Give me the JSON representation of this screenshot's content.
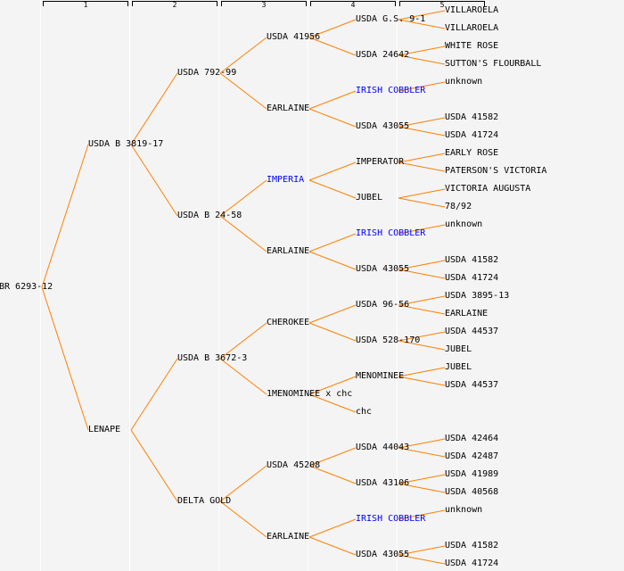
{
  "generations": [
    "1",
    "2",
    "3",
    "4",
    "5"
  ],
  "colors": {
    "line": "#ff8000",
    "link": "#0000ff",
    "text": "#000000",
    "background": "#f4f4f4"
  },
  "tree": {
    "n": "BR 6293-12",
    "c": [
      {
        "n": "USDA B 3819-17",
        "c": [
          {
            "n": "USDA 792-99",
            "c": [
              {
                "n": "USDA 41956",
                "c": [
                  {
                    "n": "USDA G.S. 9-1",
                    "c": [
                      {
                        "n": "VILLAROELA"
                      },
                      {
                        "n": "VILLAROELA"
                      }
                    ]
                  },
                  {
                    "n": "USDA 24642",
                    "c": [
                      {
                        "n": "WHITE ROSE"
                      },
                      {
                        "n": "SUTTON'S FLOURBALL"
                      }
                    ]
                  }
                ]
              },
              {
                "n": "EARLAINE",
                "c": [
                  {
                    "n": "IRISH COBBLER",
                    "link": true,
                    "c": [
                      {
                        "n": "unknown"
                      }
                    ]
                  },
                  {
                    "n": "USDA 43055",
                    "c": [
                      {
                        "n": "USDA 41582"
                      },
                      {
                        "n": "USDA 41724"
                      }
                    ]
                  }
                ]
              }
            ]
          },
          {
            "n": "USDA B 24-58",
            "c": [
              {
                "n": "IMPERIA",
                "link": true,
                "c": [
                  {
                    "n": "IMPERATOR",
                    "c": [
                      {
                        "n": "EARLY ROSE"
                      },
                      {
                        "n": "PATERSON'S VICTORIA"
                      }
                    ]
                  },
                  {
                    "n": "JUBEL",
                    "c": [
                      {
                        "n": "VICTORIA AUGUSTA"
                      },
                      {
                        "n": "78/92"
                      }
                    ]
                  }
                ]
              },
              {
                "n": "EARLAINE",
                "c": [
                  {
                    "n": "IRISH COBBLER",
                    "link": true,
                    "c": [
                      {
                        "n": "unknown"
                      }
                    ]
                  },
                  {
                    "n": "USDA 43055",
                    "c": [
                      {
                        "n": "USDA 41582"
                      },
                      {
                        "n": "USDA 41724"
                      }
                    ]
                  }
                ]
              }
            ]
          }
        ]
      },
      {
        "n": "LENAPE",
        "c": [
          {
            "n": "USDA B 3672-3",
            "c": [
              {
                "n": "CHEROKEE",
                "c": [
                  {
                    "n": "USDA 96-56",
                    "c": [
                      {
                        "n": "USDA 3895-13"
                      },
                      {
                        "n": "EARLAINE"
                      }
                    ]
                  },
                  {
                    "n": "USDA 528-170",
                    "c": [
                      {
                        "n": "USDA 44537"
                      },
                      {
                        "n": "JUBEL"
                      }
                    ]
                  }
                ]
              },
              {
                "n": "1MENOMINEE x chc",
                "c": [
                  {
                    "n": "MENOMINEE",
                    "c": [
                      {
                        "n": "JUBEL"
                      },
                      {
                        "n": "USDA 44537"
                      }
                    ]
                  },
                  {
                    "n": "chc"
                  }
                ]
              }
            ]
          },
          {
            "n": "DELTA GOLD",
            "c": [
              {
                "n": "USDA 45208",
                "c": [
                  {
                    "n": "USDA 44043",
                    "c": [
                      {
                        "n": "USDA 42464"
                      },
                      {
                        "n": "USDA 42487"
                      }
                    ]
                  },
                  {
                    "n": "USDA 43106",
                    "c": [
                      {
                        "n": "USDA 41989"
                      },
                      {
                        "n": "USDA 40568"
                      }
                    ]
                  }
                ]
              },
              {
                "n": "EARLAINE",
                "c": [
                  {
                    "n": "IRISH COBBLER",
                    "link": true,
                    "c": [
                      {
                        "n": "unknown"
                      }
                    ]
                  },
                  {
                    "n": "USDA 43055",
                    "c": [
                      {
                        "n": "USDA 41582"
                      },
                      {
                        "n": "USDA 41724"
                      }
                    ]
                  }
                ]
              }
            ]
          }
        ]
      }
    ]
  }
}
